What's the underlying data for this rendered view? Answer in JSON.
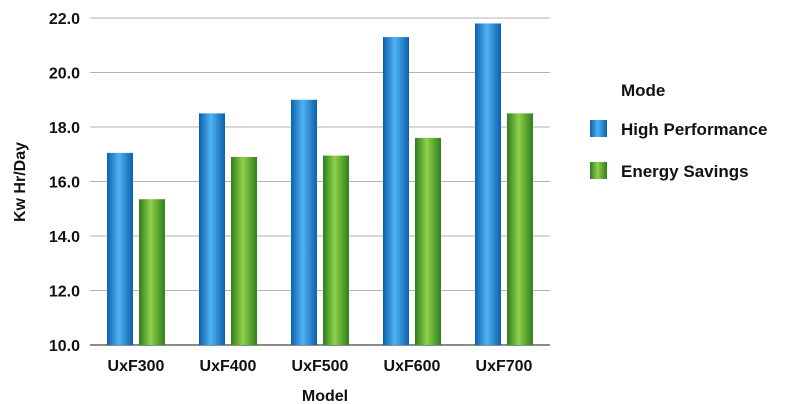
{
  "chart_data": {
    "type": "bar",
    "title": "",
    "xlabel": "Model",
    "ylabel": "Kw Hr/Day",
    "categories": [
      "UxF300",
      "UxF400",
      "UxF500",
      "UxF600",
      "UxF700"
    ],
    "series": [
      {
        "name": "High Performance",
        "values": [
          17.05,
          18.5,
          19.0,
          21.3,
          21.8
        ],
        "color": "#1f7fd1"
      },
      {
        "name": "Energy Savings",
        "values": [
          15.35,
          16.9,
          16.95,
          17.6,
          18.5
        ],
        "color": "#4aa12e"
      }
    ],
    "ylim": [
      10.0,
      22.0
    ],
    "yticks": [
      "10.0",
      "12.0",
      "14.0",
      "16.0",
      "18.0",
      "20.0",
      "22.0"
    ],
    "grid": true,
    "legend": {
      "title": "Mode",
      "position": "right"
    }
  }
}
